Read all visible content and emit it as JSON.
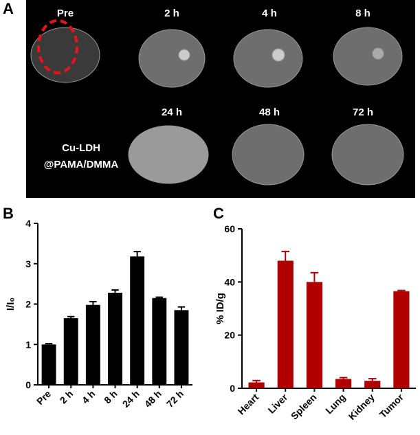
{
  "figure": {
    "panel_labels": [
      "A",
      "B",
      "C"
    ],
    "image_labels": [
      "Pre",
      "2 h",
      "4 h",
      "8 h",
      "24 h",
      "48 h",
      "72 h"
    ],
    "agent_label": [
      "Cu-LDH",
      "@PAMA/DMMA"
    ]
  },
  "chart_data": [
    {
      "type": "bar",
      "y_label": "I/I₀",
      "categories": [
        "Pre",
        "2 h",
        "4 h",
        "8 h",
        "24 h",
        "48 h",
        "72 h"
      ],
      "values": [
        1.0,
        1.65,
        1.98,
        2.28,
        3.18,
        2.15,
        1.85
      ],
      "errors": [
        0.02,
        0.04,
        0.08,
        0.07,
        0.12,
        0.02,
        0.08
      ],
      "color": "#000000",
      "ylim": [
        0,
        4
      ],
      "yticks": [
        0,
        1,
        2,
        3,
        4
      ]
    },
    {
      "type": "bar",
      "y_label": "% ID/g",
      "categories": [
        "Heart",
        "Liver",
        "Spleen",
        "Lung",
        "Kidney",
        "Tumor"
      ],
      "values": [
        2.2,
        48,
        40,
        3.5,
        2.8,
        36.5
      ],
      "errors": [
        0.7,
        3.5,
        3.5,
        0.5,
        0.8,
        0.3
      ],
      "color": "#b00000",
      "ylim": [
        0,
        60
      ],
      "yticks": [
        0,
        20,
        40,
        60
      ]
    }
  ]
}
